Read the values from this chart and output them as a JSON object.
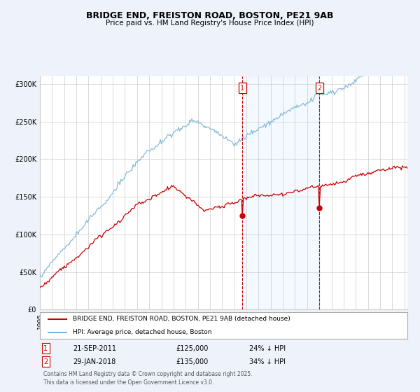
{
  "title": "BRIDGE END, FREISTON ROAD, BOSTON, PE21 9AB",
  "subtitle": "Price paid vs. HM Land Registry's House Price Index (HPI)",
  "hpi_label": "HPI: Average price, detached house, Boston",
  "property_label": "BRIDGE END, FREISTON ROAD, BOSTON, PE21 9AB (detached house)",
  "hpi_color": "#7ab4d8",
  "property_color": "#cc0000",
  "marker1_label": "21-SEP-2011",
  "marker2_label": "29-JAN-2018",
  "marker1_price": "£125,000",
  "marker2_price": "£135,000",
  "marker1_hpi": "24% ↓ HPI",
  "marker2_hpi": "34% ↓ HPI",
  "background_color": "#eef2fb",
  "plot_background": "#ffffff",
  "grid_color": "#cccccc",
  "footnote": "Contains HM Land Registry data © Crown copyright and database right 2025.\nThis data is licensed under the Open Government Licence v3.0.",
  "ylim": [
    0,
    310000
  ],
  "num_months": 364,
  "start_year": 1995
}
